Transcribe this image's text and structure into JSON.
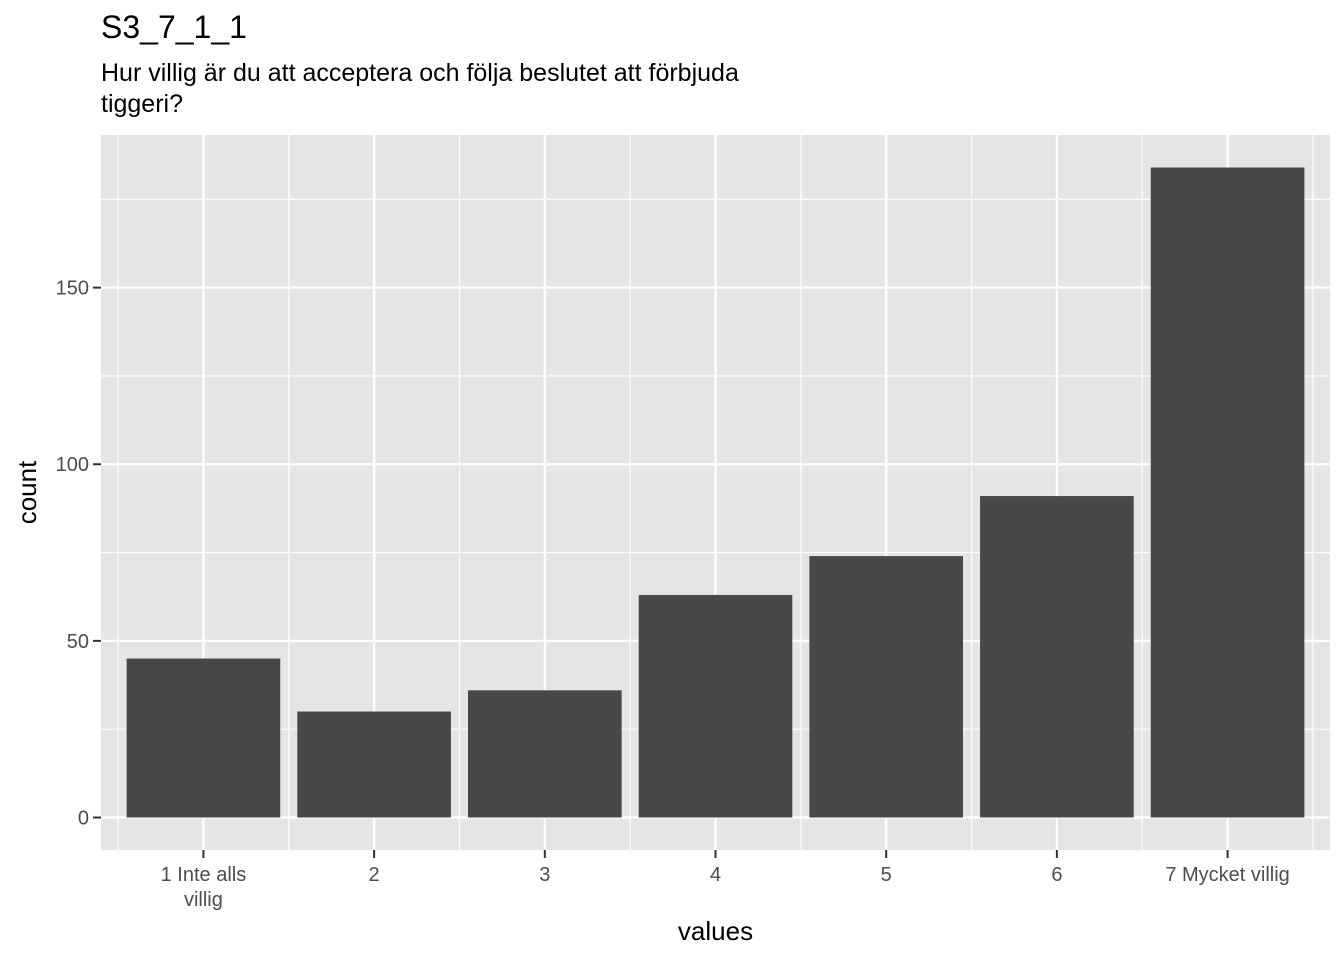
{
  "chart_data": {
    "type": "bar",
    "title": "S3_7_1_1",
    "subtitle_lines": [
      "Hur villig är du att acceptera och följa beslutet att förbjuda",
      "tiggeri?"
    ],
    "xlabel": "values",
    "ylabel": "count",
    "categories": [
      [
        "1 Inte alls",
        "villig"
      ],
      [
        "2"
      ],
      [
        "3"
      ],
      [
        "4"
      ],
      [
        "5"
      ],
      [
        "6"
      ],
      [
        "7 Mycket villig"
      ]
    ],
    "values": [
      45,
      30,
      36,
      63,
      74,
      91,
      184
    ],
    "ylim": [
      -9.2,
      193.2
    ],
    "yticks": [
      0,
      50,
      100,
      150
    ],
    "grid": true,
    "colors": {
      "bar": "#484848",
      "panel": "#e5e5e5",
      "grid": "#ffffff",
      "tick": "#333333",
      "tick_label": "#4d4d4d"
    }
  }
}
